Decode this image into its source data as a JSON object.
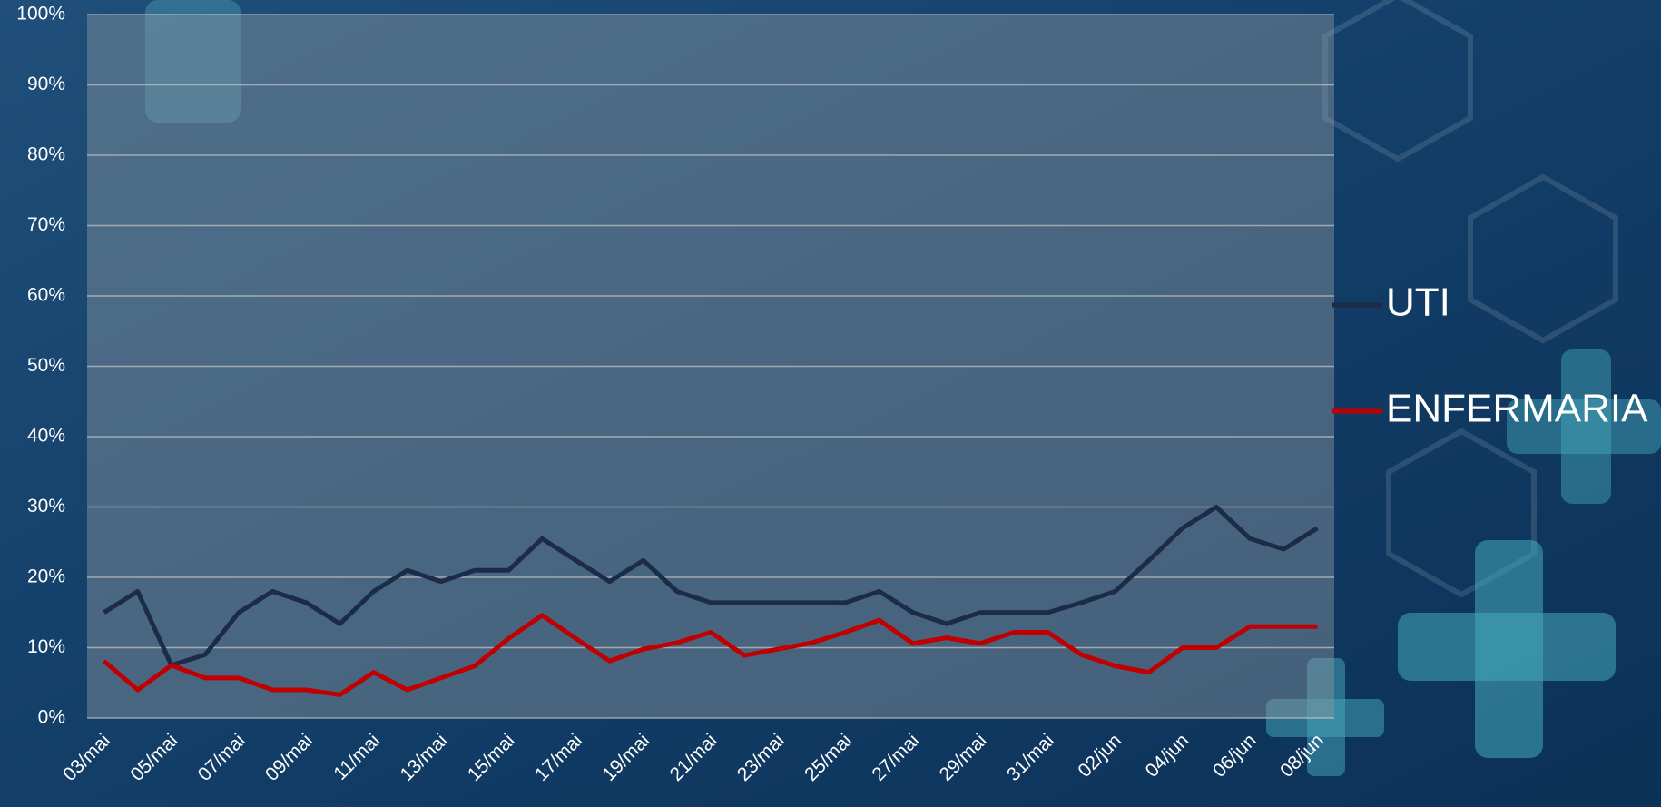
{
  "chart_data": {
    "type": "line",
    "categories": [
      "03/mai",
      null,
      "05/mai",
      null,
      "07/mai",
      null,
      "09/mai",
      null,
      "11/mai",
      null,
      "13/mai",
      null,
      "15/mai",
      null,
      "17/mai",
      null,
      "19/mai",
      null,
      "21/mai",
      null,
      "23/mai",
      null,
      "25/mai",
      null,
      "27/mai",
      null,
      "29/mai",
      null,
      "31/mai",
      null,
      "02/jun",
      null,
      "04/jun",
      null,
      "06/jun",
      null,
      "08/jun"
    ],
    "series": [
      {
        "name": "UTI",
        "color": "#1c2b48",
        "values": [
          15,
          18,
          7.5,
          9,
          15,
          18,
          16.4,
          13.4,
          18,
          21,
          19.4,
          21,
          21,
          25.5,
          22.4,
          19.4,
          22.4,
          18,
          16.4,
          16.4,
          16.4,
          16.4,
          16.4,
          18,
          15,
          13.4,
          15,
          15,
          15,
          16.4,
          18,
          22.4,
          27,
          30,
          25.5,
          24,
          27
        ]
      },
      {
        "name": "ENFERMARIA",
        "color": "#c00000",
        "values": [
          8.1,
          4,
          7.5,
          5.7,
          5.7,
          4,
          4,
          3.3,
          6.5,
          4,
          5.7,
          7.4,
          11.3,
          14.6,
          11.3,
          8.1,
          9.8,
          10.7,
          12.2,
          8.9,
          9.8,
          10.7,
          12.2,
          13.9,
          10.6,
          11.4,
          10.6,
          12.2,
          12.2,
          9,
          7.4,
          6.5,
          10,
          10,
          13,
          13,
          13
        ]
      }
    ],
    "ylim": [
      0,
      100
    ],
    "yticks": [
      {
        "value": 0,
        "label": "0%"
      },
      {
        "value": 10,
        "label": "10%"
      },
      {
        "value": 20,
        "label": "20%"
      },
      {
        "value": 30,
        "label": "30%"
      },
      {
        "value": 40,
        "label": "40%"
      },
      {
        "value": 50,
        "label": "50%"
      },
      {
        "value": 60,
        "label": "60%"
      },
      {
        "value": 70,
        "label": "70%"
      },
      {
        "value": 80,
        "label": "80%"
      },
      {
        "value": 90,
        "label": "90%"
      },
      {
        "value": 100,
        "label": "100%"
      }
    ],
    "grid": true,
    "legend": "right"
  }
}
